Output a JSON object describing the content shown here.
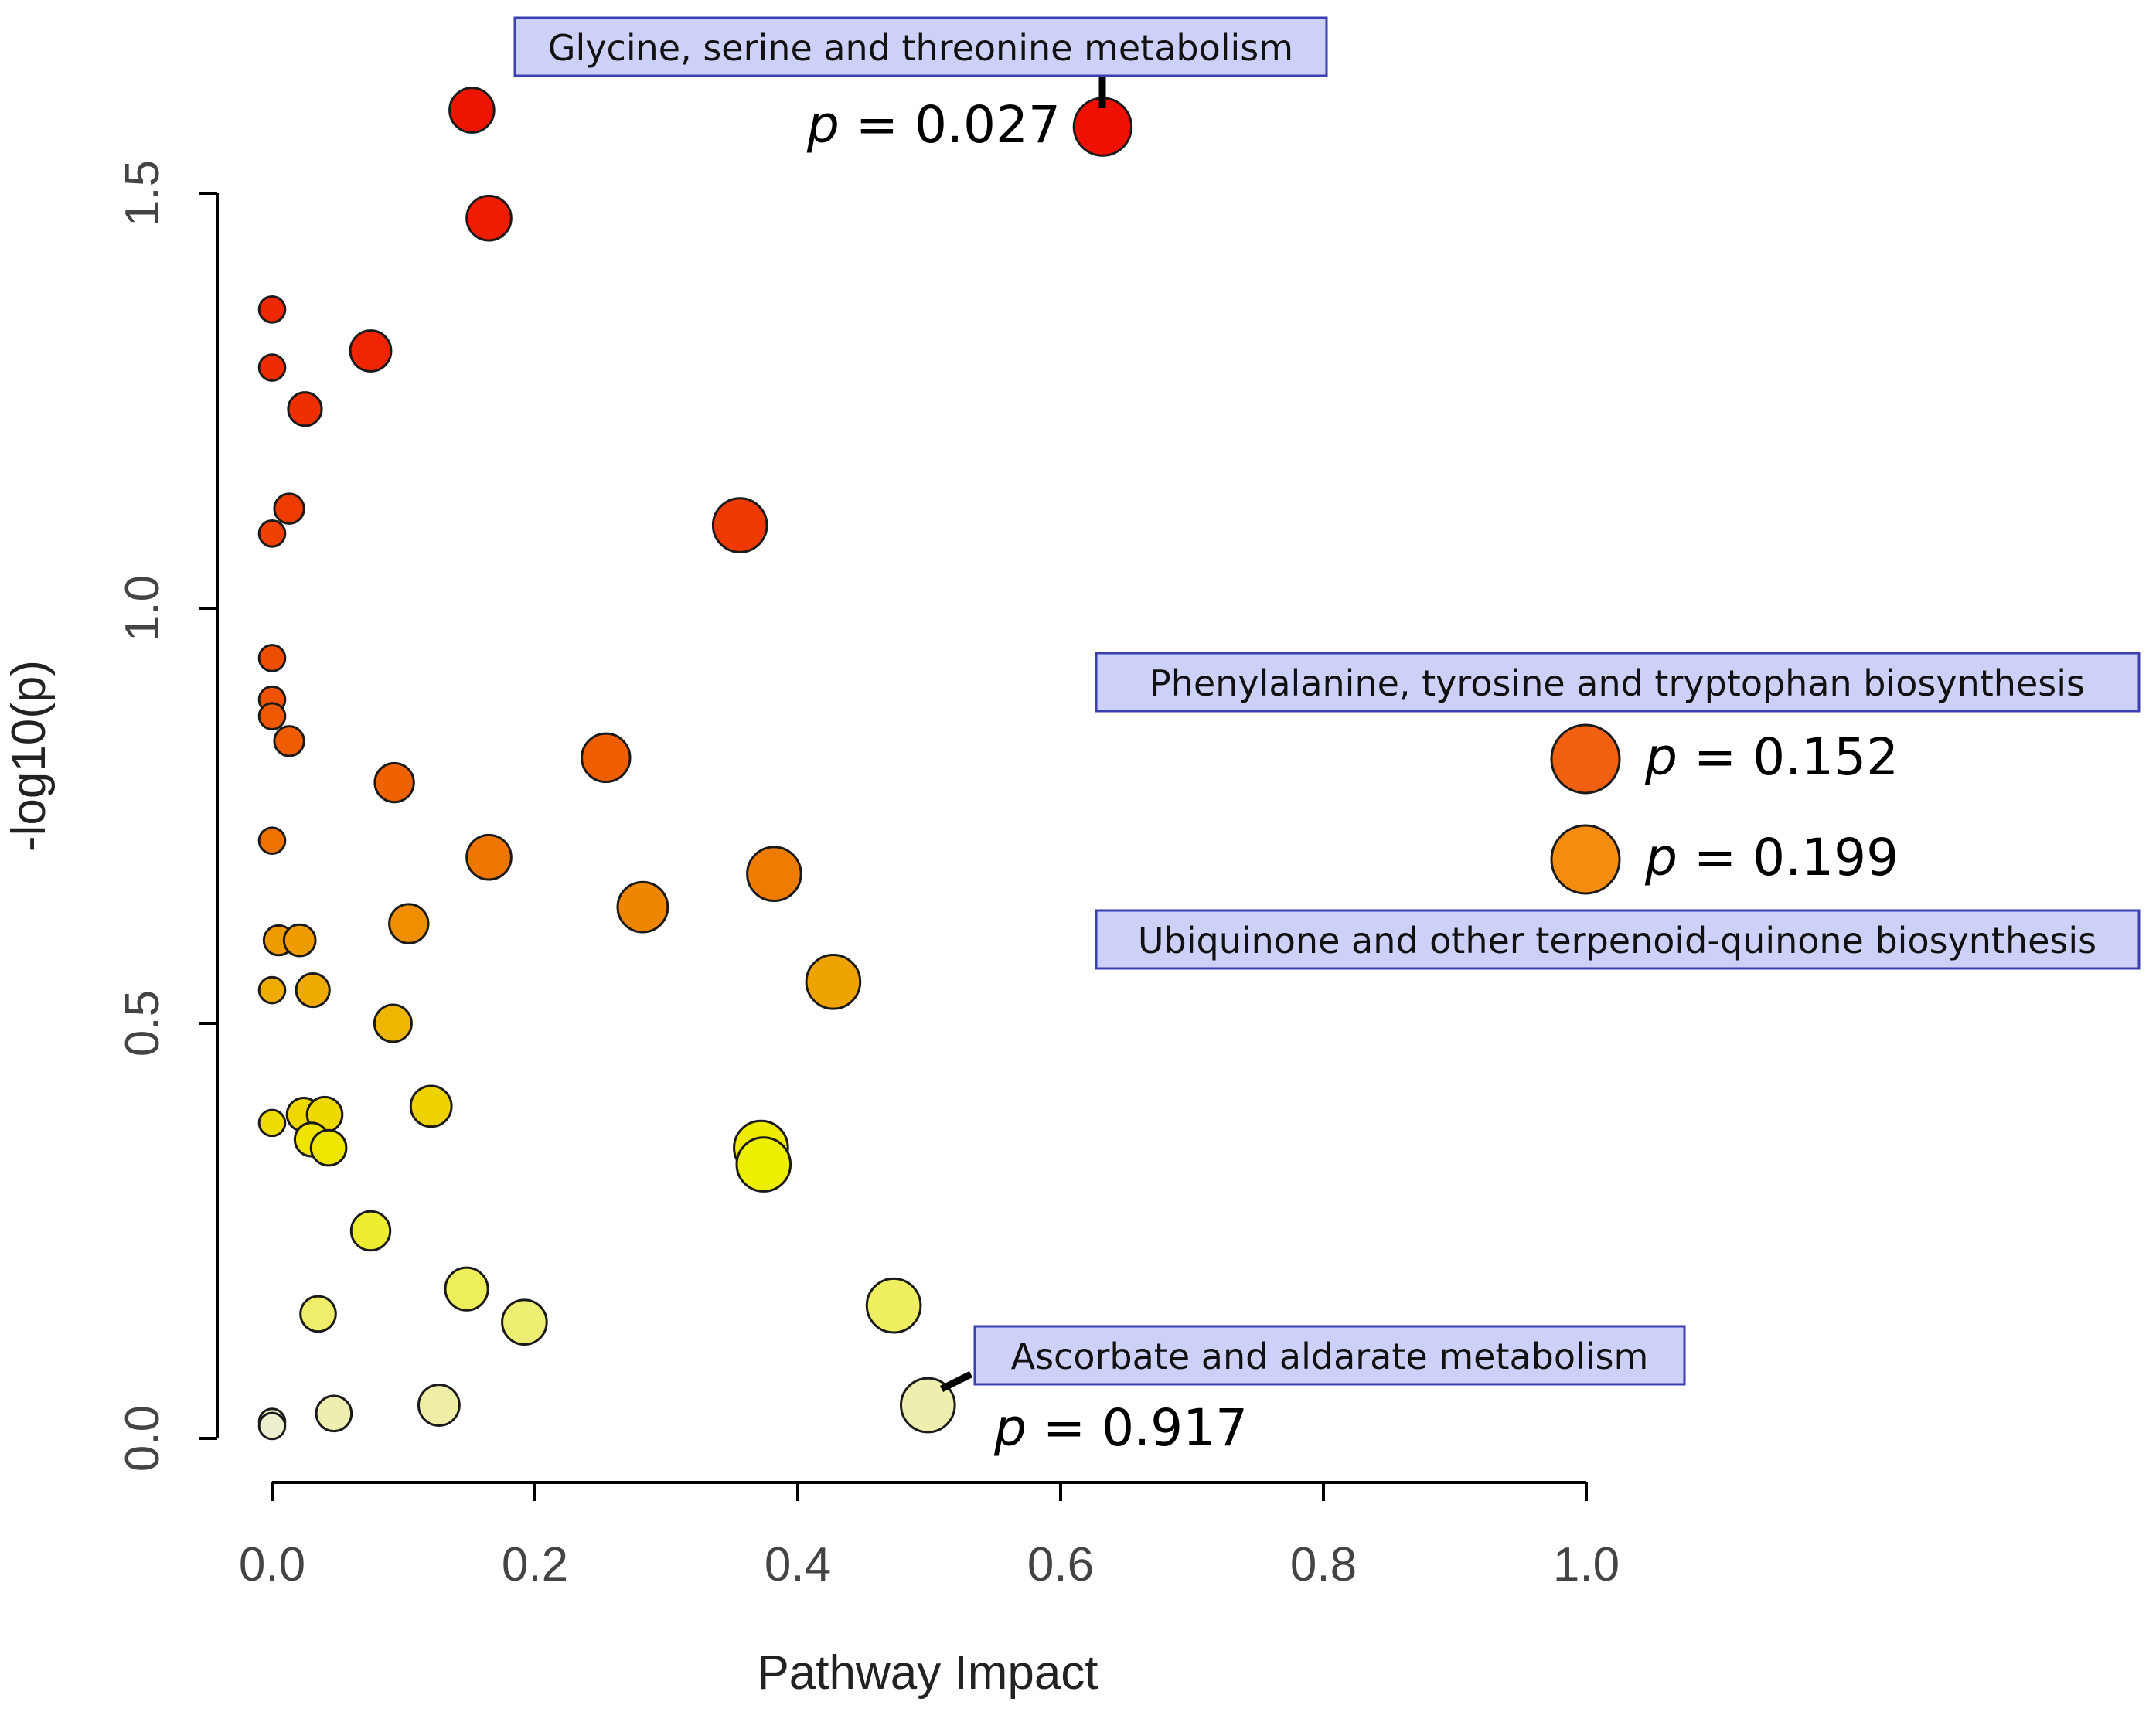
{
  "chart_data": {
    "type": "scatter",
    "title": "",
    "xlabel": "Pathway Impact",
    "ylabel": "-log10(p)",
    "xlim": [
      0.0,
      1.0
    ],
    "ylim": [
      0.0,
      1.5
    ],
    "x_ticks": [
      "0.0",
      "0.2",
      "0.4",
      "0.6",
      "0.8",
      "1.0"
    ],
    "y_ticks": [
      "0.0",
      "0.5",
      "1.0",
      "1.5"
    ],
    "grid": false,
    "encoding": "bubble size ~ pathway impact, colour ~ p-value (red = low p, pale yellow = high p)",
    "points": [
      {
        "x": 0.152,
        "y": 1.6,
        "r": 1.2,
        "color": "#ee1500"
      },
      {
        "x": 0.632,
        "y": 1.58,
        "r": 1.55,
        "color": "#ee1000"
      },
      {
        "x": 0.165,
        "y": 1.47,
        "r": 1.2,
        "color": "#ee1d00"
      },
      {
        "x": 0.0,
        "y": 1.36,
        "r": 0.7,
        "color": "#ee2800"
      },
      {
        "x": 0.075,
        "y": 1.31,
        "r": 1.1,
        "color": "#ee2500"
      },
      {
        "x": 0.0,
        "y": 1.29,
        "r": 0.7,
        "color": "#ee2c00"
      },
      {
        "x": 0.025,
        "y": 1.24,
        "r": 0.9,
        "color": "#ee3000"
      },
      {
        "x": 0.013,
        "y": 1.12,
        "r": 0.8,
        "color": "#ee3c00"
      },
      {
        "x": 0.0,
        "y": 1.09,
        "r": 0.7,
        "color": "#ee4000"
      },
      {
        "x": 0.356,
        "y": 1.1,
        "r": 1.45,
        "color": "#ee3a00"
      },
      {
        "x": 0.0,
        "y": 0.94,
        "r": 0.7,
        "color": "#ee4e00"
      },
      {
        "x": 0.0,
        "y": 0.89,
        "r": 0.7,
        "color": "#ee5400"
      },
      {
        "x": 0.0,
        "y": 0.87,
        "r": 0.7,
        "color": "#ee5800"
      },
      {
        "x": 0.013,
        "y": 0.84,
        "r": 0.8,
        "color": "#ee5c00"
      },
      {
        "x": 0.254,
        "y": 0.82,
        "r": 1.3,
        "color": "#ee5e00"
      },
      {
        "x": 0.093,
        "y": 0.79,
        "r": 1.05,
        "color": "#ee6200"
      },
      {
        "x": 0.0,
        "y": 0.72,
        "r": 0.7,
        "color": "#ee7200"
      },
      {
        "x": 0.165,
        "y": 0.7,
        "r": 1.2,
        "color": "#ee7600"
      },
      {
        "x": 0.382,
        "y": 0.68,
        "r": 1.45,
        "color": "#ee7c00"
      },
      {
        "x": 0.282,
        "y": 0.64,
        "r": 1.35,
        "color": "#ee8600"
      },
      {
        "x": 0.104,
        "y": 0.62,
        "r": 1.05,
        "color": "#ee8e00"
      },
      {
        "x": 0.005,
        "y": 0.6,
        "r": 0.8,
        "color": "#ee9a00"
      },
      {
        "x": 0.021,
        "y": 0.6,
        "r": 0.85,
        "color": "#ee9c00"
      },
      {
        "x": 0.0,
        "y": 0.54,
        "r": 0.7,
        "color": "#eeac00"
      },
      {
        "x": 0.031,
        "y": 0.54,
        "r": 0.9,
        "color": "#eeaa00"
      },
      {
        "x": 0.427,
        "y": 0.55,
        "r": 1.45,
        "color": "#eea400"
      },
      {
        "x": 0.092,
        "y": 0.5,
        "r": 1.0,
        "color": "#eeb600"
      },
      {
        "x": 0.0,
        "y": 0.38,
        "r": 0.7,
        "color": "#eedc00"
      },
      {
        "x": 0.024,
        "y": 0.39,
        "r": 0.9,
        "color": "#eed800"
      },
      {
        "x": 0.04,
        "y": 0.39,
        "r": 0.95,
        "color": "#eeda00"
      },
      {
        "x": 0.121,
        "y": 0.4,
        "r": 1.1,
        "color": "#eed200"
      },
      {
        "x": 0.03,
        "y": 0.36,
        "r": 0.9,
        "color": "#eee400"
      },
      {
        "x": 0.043,
        "y": 0.35,
        "r": 0.95,
        "color": "#eee600"
      },
      {
        "x": 0.372,
        "y": 0.35,
        "r": 1.45,
        "color": "#eeea00"
      },
      {
        "x": 0.374,
        "y": 0.33,
        "r": 1.45,
        "color": "#eeee00"
      },
      {
        "x": 0.075,
        "y": 0.25,
        "r": 1.05,
        "color": "#eeee30"
      },
      {
        "x": 0.148,
        "y": 0.18,
        "r": 1.15,
        "color": "#eeee5a"
      },
      {
        "x": 0.473,
        "y": 0.16,
        "r": 1.45,
        "color": "#eeee60"
      },
      {
        "x": 0.035,
        "y": 0.15,
        "r": 0.95,
        "color": "#eeee6a"
      },
      {
        "x": 0.192,
        "y": 0.14,
        "r": 1.2,
        "color": "#eeee72"
      },
      {
        "x": 0.0,
        "y": 0.02,
        "r": 0.7,
        "color": "#eeeebe"
      },
      {
        "x": 0.0,
        "y": 0.015,
        "r": 0.7,
        "color": "#eeeed0"
      },
      {
        "x": 0.047,
        "y": 0.03,
        "r": 0.95,
        "color": "#eeeeb0"
      },
      {
        "x": 0.127,
        "y": 0.04,
        "r": 1.1,
        "color": "#eeeea6"
      },
      {
        "x": 0.499,
        "y": 0.04,
        "r": 1.45,
        "color": "#eeeeae"
      }
    ]
  },
  "annotations": {
    "glycine": {
      "label": "Glycine, serine and threonine metabolism",
      "p_symbol": "p",
      "p_value": "= 0.027"
    },
    "phenylalanine": {
      "label": "Phenylalanine, tyrosine and tryptophan biosynthesis",
      "p_symbol": "p",
      "p_value": "= 0.152",
      "color": "#f06010"
    },
    "ubiquinone": {
      "label": "Ubiquinone and other terpenoid-quinone biosynthesis",
      "p_symbol": "p",
      "p_value": "= 0.199",
      "color": "#f48c10"
    },
    "ascorbate": {
      "label": "Ascorbate and aldarate metabolism",
      "p_symbol": "p",
      "p_value": "= 0.917"
    }
  }
}
